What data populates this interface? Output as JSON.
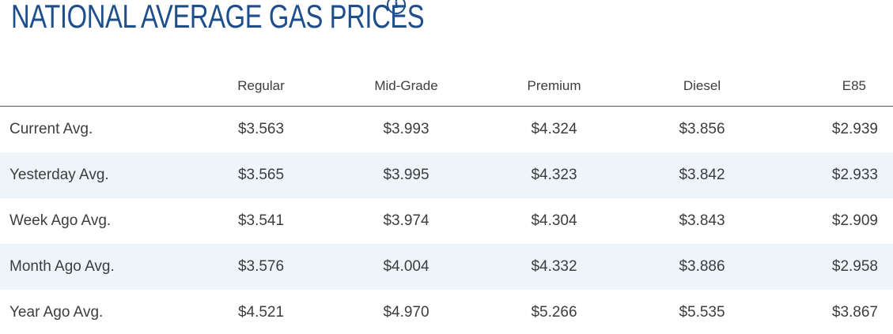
{
  "title": "NATIONAL AVERAGE GAS PRICES",
  "info_icon": "info-icon",
  "colors": {
    "title": "#1f4f8b",
    "stripe": "#eef4f9",
    "text": "#3d3d3d"
  },
  "columns": [
    "Regular",
    "Mid-Grade",
    "Premium",
    "Diesel",
    "E85"
  ],
  "rows": [
    {
      "label": "Current Avg.",
      "values": [
        "$3.563",
        "$3.993",
        "$4.324",
        "$3.856",
        "$2.939"
      ]
    },
    {
      "label": "Yesterday Avg.",
      "values": [
        "$3.565",
        "$3.995",
        "$4.323",
        "$3.842",
        "$2.933"
      ]
    },
    {
      "label": "Week Ago Avg.",
      "values": [
        "$3.541",
        "$3.974",
        "$4.304",
        "$3.843",
        "$2.909"
      ]
    },
    {
      "label": "Month Ago Avg.",
      "values": [
        "$3.576",
        "$4.004",
        "$4.332",
        "$3.886",
        "$2.958"
      ]
    },
    {
      "label": "Year Ago Avg.",
      "values": [
        "$4.521",
        "$4.970",
        "$5.266",
        "$5.535",
        "$3.867"
      ]
    }
  ]
}
